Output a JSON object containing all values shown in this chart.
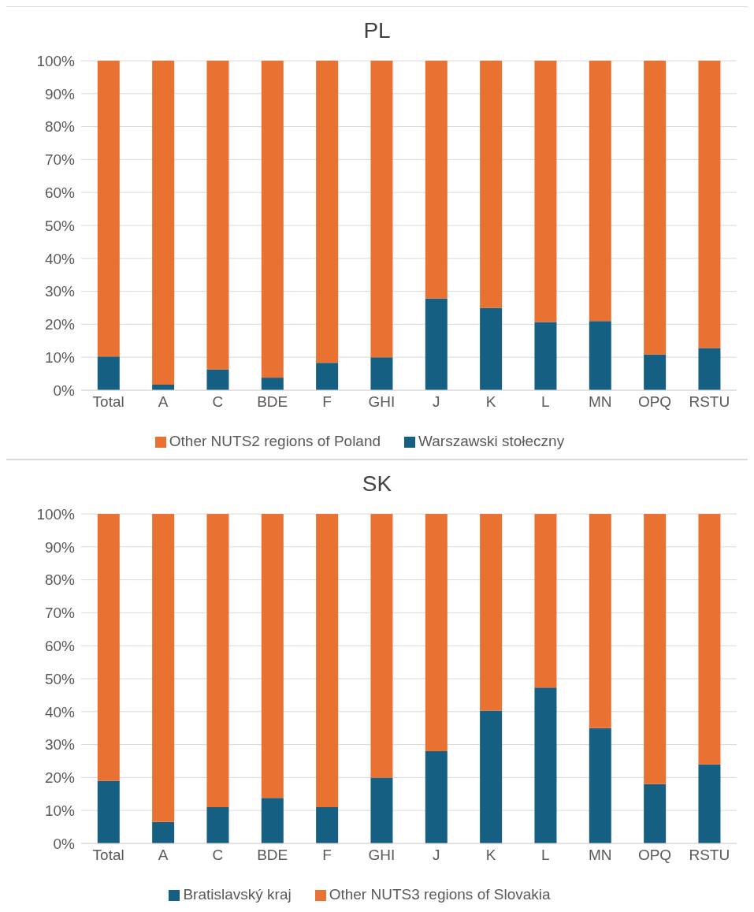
{
  "chart_data": [
    {
      "type": "bar",
      "title": "PL",
      "stacked": true,
      "categories": [
        "Total",
        "A",
        "C",
        "BDE",
        "F",
        "GHI",
        "J",
        "K",
        "L",
        "MN",
        "OPQ",
        "RSTU"
      ],
      "series": [
        {
          "name": "Warszawski stołeczny",
          "color": "#156082",
          "values": [
            10.2,
            1.7,
            6.3,
            3.8,
            8.3,
            10,
            27.8,
            25,
            20.7,
            21,
            10.8,
            12.8
          ]
        },
        {
          "name": "Other NUTS2 regions of Poland",
          "color": "#e97132",
          "values": [
            89.8,
            98.3,
            93.7,
            96.2,
            91.7,
            90,
            72.2,
            75,
            79.3,
            79,
            89.2,
            87.2
          ]
        }
      ],
      "ylim": [
        0,
        100
      ],
      "yticks": [
        {
          "value": 0,
          "label": "0%"
        },
        {
          "value": 10,
          "label": "10%"
        },
        {
          "value": 20,
          "label": "20%"
        },
        {
          "value": 30,
          "label": "30%"
        },
        {
          "value": 40,
          "label": "40%"
        },
        {
          "value": 50,
          "label": "50%"
        },
        {
          "value": 60,
          "label": "60%"
        },
        {
          "value": 70,
          "label": "70%"
        },
        {
          "value": 80,
          "label": "80%"
        },
        {
          "value": 90,
          "label": "90%"
        },
        {
          "value": 100,
          "label": "100%"
        }
      ],
      "grid": "y",
      "legend": "bottom"
    },
    {
      "type": "bar",
      "title": "SK",
      "stacked": true,
      "categories": [
        "Total",
        "A",
        "C",
        "BDE",
        "F",
        "GHI",
        "J",
        "K",
        "L",
        "MN",
        "OPQ",
        "RSTU"
      ],
      "series": [
        {
          "name": "Bratislavský kraj",
          "color": "#156082",
          "values": [
            19,
            6.5,
            11,
            13.8,
            11,
            20,
            28,
            40.3,
            47.3,
            35,
            18,
            24
          ]
        },
        {
          "name": "Other NUTS3 regions of Slovakia",
          "color": "#e97132",
          "values": [
            81,
            93.5,
            89,
            86.2,
            89,
            80,
            72,
            59.7,
            52.7,
            65,
            82,
            76
          ]
        }
      ],
      "ylim": [
        0,
        100
      ],
      "yticks": [
        {
          "value": 0,
          "label": "0%"
        },
        {
          "value": 10,
          "label": "10%"
        },
        {
          "value": 20,
          "label": "20%"
        },
        {
          "value": 30,
          "label": "30%"
        },
        {
          "value": 40,
          "label": "40%"
        },
        {
          "value": 50,
          "label": "50%"
        },
        {
          "value": 60,
          "label": "60%"
        },
        {
          "value": 70,
          "label": "70%"
        },
        {
          "value": 80,
          "label": "80%"
        },
        {
          "value": 90,
          "label": "90%"
        },
        {
          "value": 100,
          "label": "100%"
        }
      ],
      "grid": "y",
      "legend": "bottom"
    }
  ]
}
